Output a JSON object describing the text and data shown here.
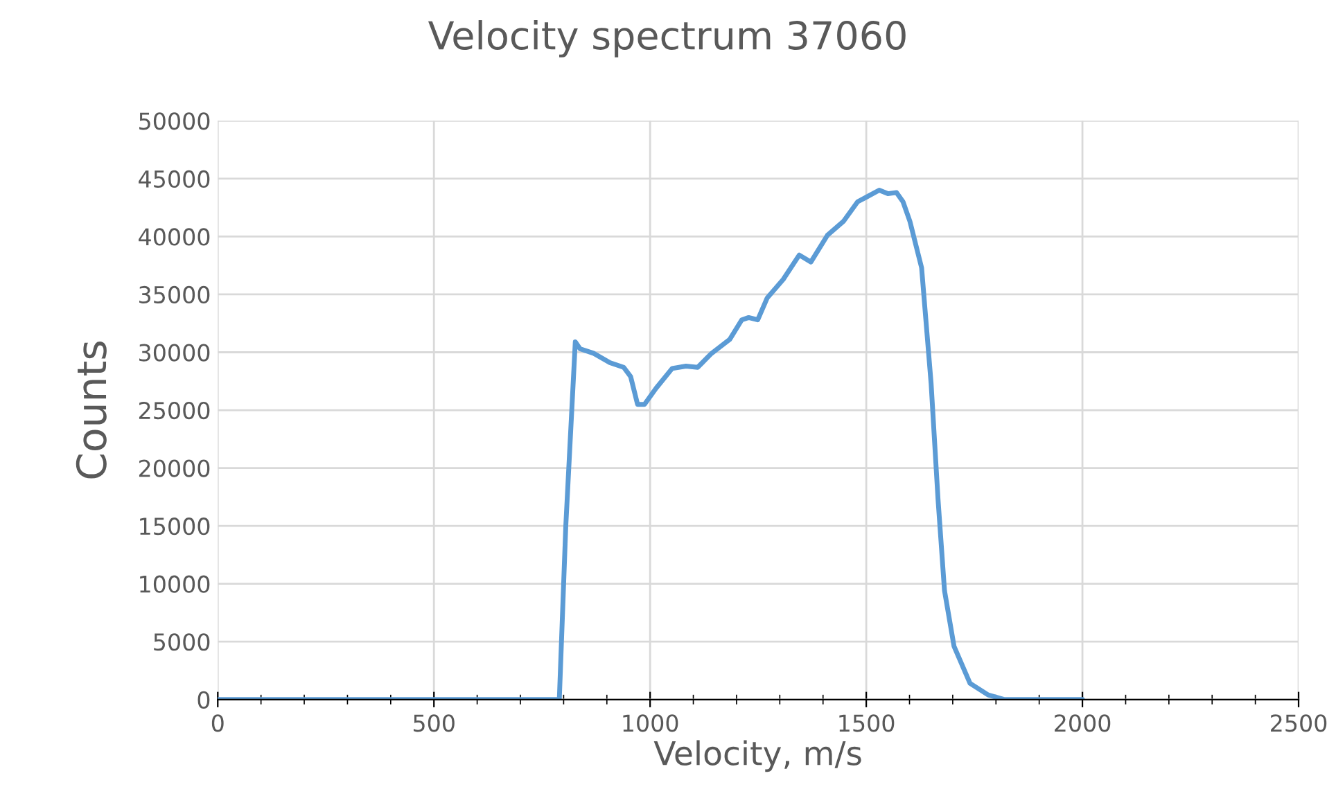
{
  "chart_data": {
    "type": "line",
    "title": "Velocity spectrum 37060",
    "xlabel": "Velocity, m/s",
    "ylabel": "Counts",
    "xlim": [
      0,
      2500
    ],
    "xticks": [
      0,
      500,
      1000,
      1500,
      2000,
      2500
    ],
    "ylim": [
      0,
      50000
    ],
    "yticks": [
      0,
      5000,
      10000,
      15000,
      20000,
      25000,
      30000,
      35000,
      40000,
      45000,
      50000
    ],
    "grid": true,
    "marker": "none",
    "line_style": "solid",
    "series": [
      {
        "color": "#5b9bd5",
        "x": [
          0,
          200,
          400,
          600,
          790,
          805,
          827,
          838,
          870,
          907,
          939,
          955,
          971,
          987,
          1014,
          1051,
          1083,
          1110,
          1142,
          1184,
          1212,
          1228,
          1249,
          1271,
          1308,
          1345,
          1372,
          1410,
          1447,
          1480,
          1500,
          1530,
          1550,
          1570,
          1585,
          1601,
          1628,
          1650,
          1666,
          1681,
          1703,
          1740,
          1782,
          1820,
          1900,
          2000
        ],
        "values": [
          0,
          0,
          0,
          0,
          0,
          15000,
          30900,
          30300,
          29900,
          29100,
          28700,
          27900,
          25500,
          25500,
          26900,
          28600,
          28800,
          28700,
          29900,
          31100,
          32800,
          33000,
          32800,
          34700,
          36300,
          38400,
          37800,
          40100,
          41300,
          43000,
          43400,
          44000,
          43700,
          43800,
          43000,
          41300,
          37300,
          27300,
          17300,
          9400,
          4600,
          1400,
          400,
          0,
          0,
          0
        ]
      }
    ]
  }
}
